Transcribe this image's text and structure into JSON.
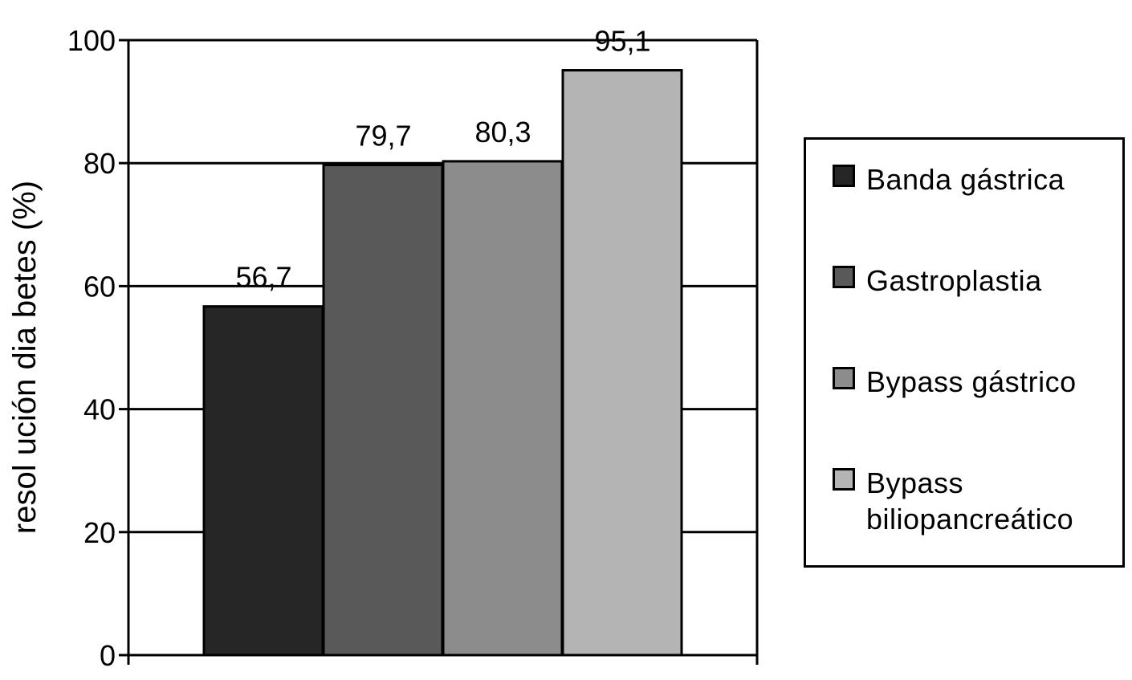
{
  "chart_data": {
    "type": "bar",
    "categories": [
      "Banda gástrica",
      "Gastroplastia",
      "Bypass gástrico",
      "Bypass biliopancreático"
    ],
    "values": [
      56.7,
      79.7,
      80.3,
      95.1
    ],
    "data_labels": [
      "56,7",
      "79,7",
      "80,3",
      "95,1"
    ],
    "colors": [
      "#262626",
      "#595959",
      "#8c8c8c",
      "#b4b4b4"
    ],
    "ylabel": "resol ución dia betes (%)",
    "xlabel": "",
    "ylim": [
      0,
      100
    ],
    "yticks": [
      0,
      20,
      40,
      60,
      80,
      100
    ],
    "grid": true,
    "legend_position": "right"
  },
  "legend": {
    "items": [
      {
        "label": "Banda gástrica",
        "color": "#262626"
      },
      {
        "label": "Gastroplastia",
        "color": "#595959"
      },
      {
        "label": "Bypass gástrico",
        "color": "#8c8c8c"
      },
      {
        "label": "Bypass biliopancreático",
        "color": "#b4b4b4"
      }
    ]
  }
}
